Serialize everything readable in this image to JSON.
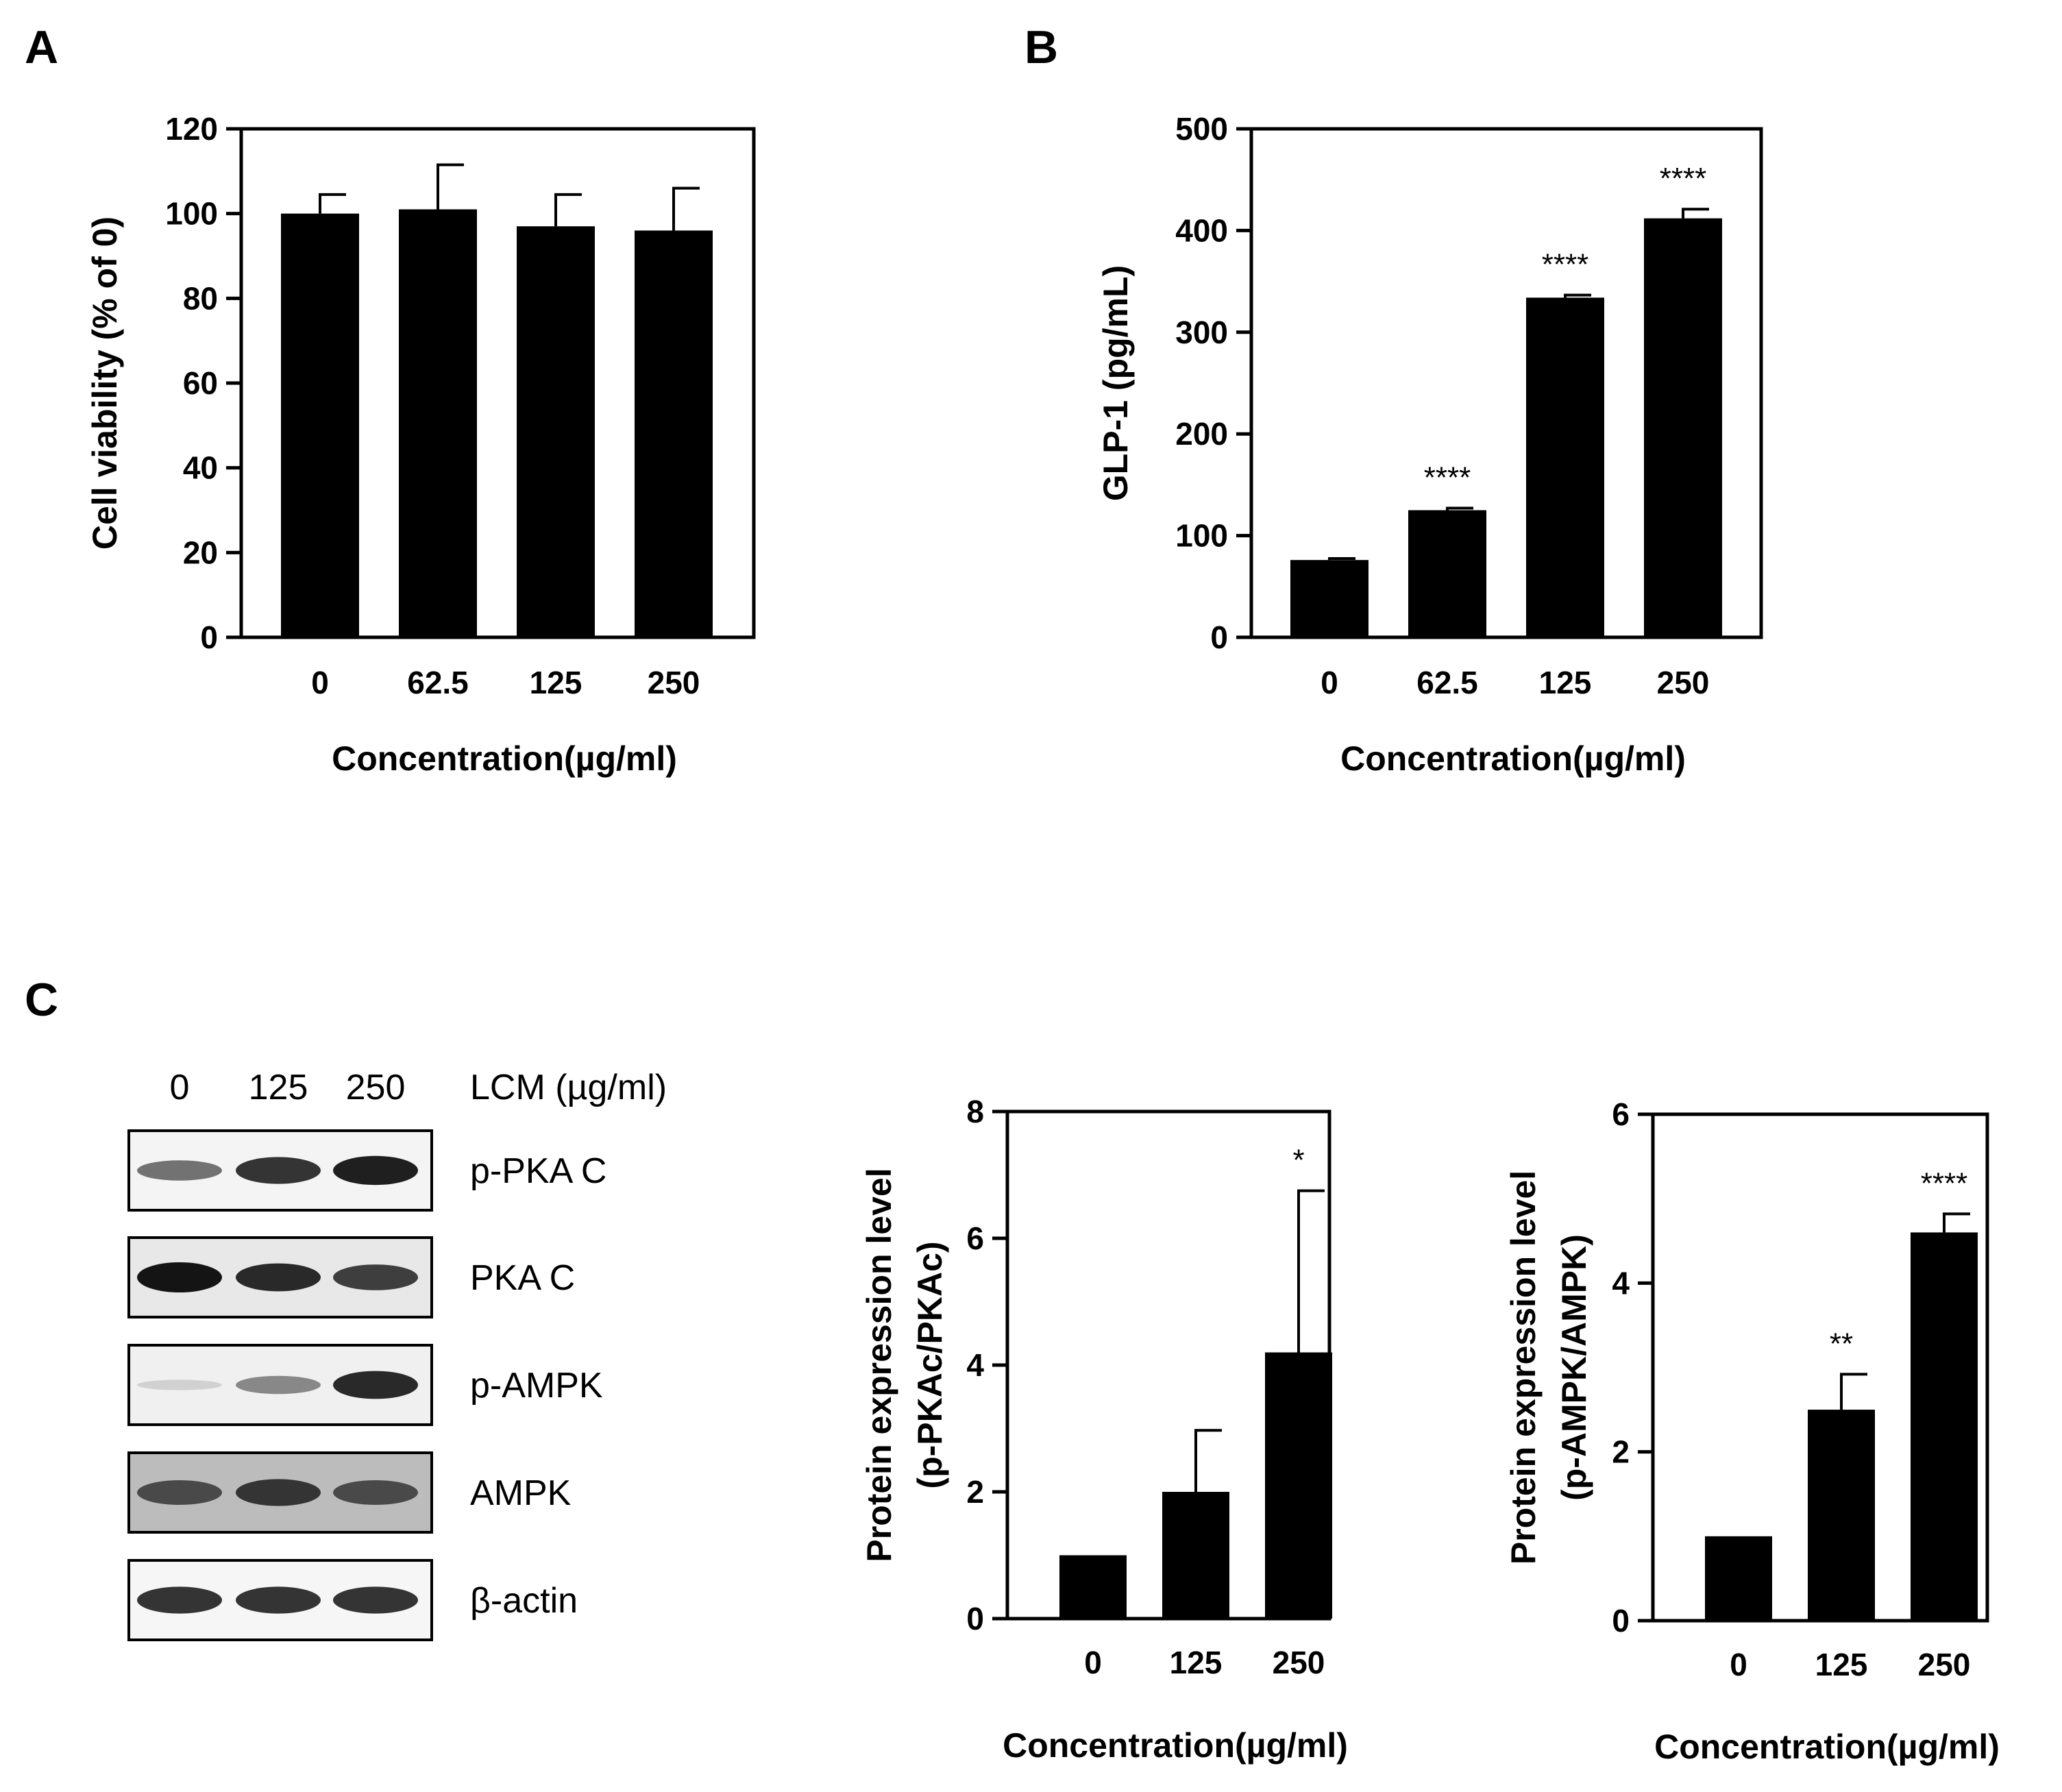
{
  "panels": {
    "a": "A",
    "b": "B",
    "c": "C"
  },
  "western_blot": {
    "lanes": [
      "0",
      "125",
      "250"
    ],
    "treatment_label": "LCM (µg/ml)",
    "rows": [
      {
        "label": "p-PKA C",
        "intensity": [
          0.55,
          0.85,
          0.95
        ],
        "background": "#f4f4f4"
      },
      {
        "label": "PKA C",
        "intensity": [
          1.0,
          0.9,
          0.8
        ],
        "background": "#e8e8e8"
      },
      {
        "label": "p-AMPK",
        "intensity": [
          0.1,
          0.45,
          0.9
        ],
        "background": "#f0f0f0"
      },
      {
        "label": "AMPK",
        "intensity": [
          0.75,
          0.85,
          0.75
        ],
        "background": "#bcbcbc"
      },
      {
        "label": "β-actin",
        "intensity": [
          0.85,
          0.85,
          0.85
        ],
        "background": "#f6f6f6"
      }
    ]
  },
  "chart_data": [
    {
      "type": "bar",
      "panel": "A",
      "categories": [
        "0",
        "62.5",
        "125",
        "250"
      ],
      "values": [
        100,
        101,
        97,
        96
      ],
      "errors": [
        4.5,
        10.5,
        7.5,
        10
      ],
      "significance": [
        "",
        "",
        "",
        ""
      ],
      "ylim": [
        0,
        120
      ],
      "yticks": [
        0,
        20,
        40,
        60,
        80,
        100,
        120
      ],
      "ylabel": "Cell viability (% of 0)",
      "xlabel": "Concentration(µg/ml)",
      "bar_color": "#000000"
    },
    {
      "type": "bar",
      "panel": "B",
      "categories": [
        "0",
        "62.5",
        "125",
        "250"
      ],
      "values": [
        76,
        125,
        334,
        412
      ],
      "errors": [
        1.5,
        2,
        2.5,
        9
      ],
      "significance": [
        "",
        "****",
        "****",
        "****"
      ],
      "ylim": [
        0,
        500
      ],
      "yticks": [
        0,
        100,
        200,
        300,
        400,
        500
      ],
      "ylabel": "GLP-1 (pg/mL)",
      "xlabel": "Concentration(µg/ml)",
      "bar_color": "#000000"
    },
    {
      "type": "bar",
      "panel": "C",
      "categories": [
        "0",
        "125",
        "250"
      ],
      "values": [
        1.0,
        2.0,
        4.2
      ],
      "errors": [
        0,
        0.97,
        2.55
      ],
      "significance": [
        "",
        "",
        "*"
      ],
      "ylim": [
        0,
        8
      ],
      "yticks": [
        0,
        2,
        4,
        6,
        8
      ],
      "ylabel": [
        "Protein expression level",
        "(p-PKAc/PKAc)"
      ],
      "xlabel": "Concentration(µg/ml)",
      "bar_color": "#000000"
    },
    {
      "type": "bar",
      "panel": "C",
      "categories": [
        "0",
        "125",
        "250"
      ],
      "values": [
        1.0,
        2.5,
        4.6
      ],
      "errors": [
        0,
        0.42,
        0.22
      ],
      "significance": [
        "",
        "**",
        "****"
      ],
      "ylim": [
        0,
        6
      ],
      "yticks": [
        0,
        2,
        4,
        6
      ],
      "ylabel": [
        "Protein expression level",
        "(p-AMPK/AMPK)"
      ],
      "xlabel": "Concentration(µg/ml)",
      "bar_color": "#000000"
    }
  ]
}
